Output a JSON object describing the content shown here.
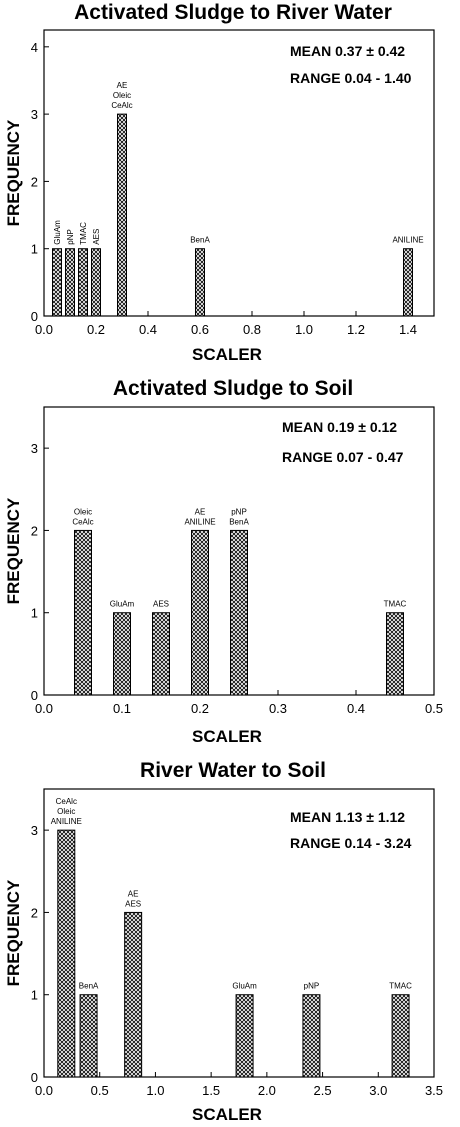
{
  "chart_data": [
    {
      "type": "bar",
      "title": "Activated Sludge to River Water",
      "xlabel": "SCALER",
      "ylabel": "FREQUENCY",
      "xlim": [
        0,
        1.5
      ],
      "ylim": [
        0,
        4.25
      ],
      "xticks": [
        "0.0",
        "0.2",
        "0.4",
        "0.6",
        "0.8",
        "1.0",
        "1.2",
        "1.4"
      ],
      "yticks": [
        "0",
        "1",
        "2",
        "3",
        "4"
      ],
      "stats": {
        "mean_label": "MEAN",
        "mean": "0.37",
        "pm": "±",
        "sd": "0.42",
        "range_label": "RANGE",
        "range_min": "0.04",
        "range_sep": "-",
        "range_max": "1.40"
      },
      "bars": [
        {
          "x": 0.05,
          "value": 1,
          "labels": [
            "GluAm"
          ],
          "rotated": true
        },
        {
          "x": 0.1,
          "value": 1,
          "labels": [
            "pNP"
          ],
          "rotated": true
        },
        {
          "x": 0.15,
          "value": 1,
          "labels": [
            "TMAC"
          ],
          "rotated": true
        },
        {
          "x": 0.2,
          "value": 1,
          "labels": [
            "AES"
          ],
          "rotated": true
        },
        {
          "x": 0.3,
          "value": 3,
          "labels": [
            "AE",
            "Oleic",
            "CeAlc"
          ],
          "rotated": false
        },
        {
          "x": 0.6,
          "value": 1,
          "labels": [
            "BenA"
          ],
          "rotated": false
        },
        {
          "x": 1.4,
          "value": 1,
          "labels": [
            "ANILINE"
          ],
          "rotated": false
        }
      ]
    },
    {
      "type": "bar",
      "title": "Activated Sludge to Soil",
      "xlabel": "SCALER",
      "ylabel": "FREQUENCY",
      "xlim": [
        0,
        0.5
      ],
      "ylim": [
        0,
        3.5
      ],
      "xticks": [
        "0.0",
        "0.1",
        "0.2",
        "0.3",
        "0.4",
        "0.5"
      ],
      "yticks": [
        "0",
        "1",
        "2",
        "3"
      ],
      "stats": {
        "mean_label": "MEAN",
        "mean": "0.19",
        "pm": "±",
        "sd": "0.12",
        "range_label": "RANGE",
        "range_min": "0.07",
        "range_sep": "-",
        "range_max": "0.47"
      },
      "bars": [
        {
          "x": 0.05,
          "value": 2,
          "labels": [
            "Oleic",
            "CeAlc"
          ],
          "rotated": false
        },
        {
          "x": 0.1,
          "value": 1,
          "labels": [
            "GluAm"
          ],
          "rotated": false
        },
        {
          "x": 0.15,
          "value": 1,
          "labels": [
            "AES"
          ],
          "rotated": false
        },
        {
          "x": 0.2,
          "value": 2,
          "labels": [
            "AE",
            "ANILINE"
          ],
          "rotated": false
        },
        {
          "x": 0.25,
          "value": 2,
          "labels": [
            "pNP",
            "BenA"
          ],
          "rotated": false
        },
        {
          "x": 0.45,
          "value": 1,
          "labels": [
            "TMAC"
          ],
          "rotated": false
        }
      ]
    },
    {
      "type": "bar",
      "title": "River Water to Soil",
      "xlabel": "SCALER",
      "ylabel": "FREQUENCY",
      "xlim": [
        0,
        3.5
      ],
      "ylim": [
        0,
        3.5
      ],
      "xticks": [
        "0.0",
        "0.5",
        "1.0",
        "1.5",
        "2.0",
        "2.5",
        "3.0",
        "3.5"
      ],
      "yticks": [
        "0",
        "1",
        "2",
        "3"
      ],
      "stats": {
        "mean_label": "MEAN",
        "mean": "1.13",
        "pm": "±",
        "sd": "1.12",
        "range_label": "RANGE",
        "range_min": "0.14",
        "range_sep": "-",
        "range_max": "3.24"
      },
      "bars": [
        {
          "x": 0.2,
          "value": 3,
          "labels": [
            "CeAlc",
            "Oleic",
            "ANILINE"
          ],
          "rotated": false
        },
        {
          "x": 0.4,
          "value": 1,
          "labels": [
            "BenA"
          ],
          "rotated": false
        },
        {
          "x": 0.8,
          "value": 2,
          "labels": [
            "AE",
            "AES"
          ],
          "rotated": false
        },
        {
          "x": 1.8,
          "value": 1,
          "labels": [
            "GluAm"
          ],
          "rotated": false
        },
        {
          "x": 2.4,
          "value": 1,
          "labels": [
            "pNP"
          ],
          "rotated": false
        },
        {
          "x": 3.2,
          "value": 1,
          "labels": [
            "TMAC"
          ],
          "rotated": false
        }
      ]
    }
  ]
}
